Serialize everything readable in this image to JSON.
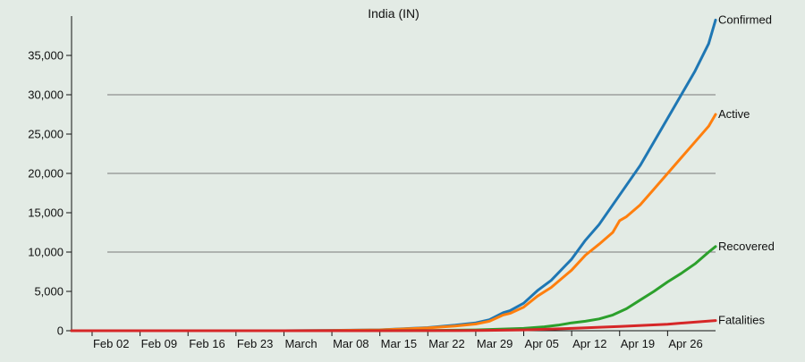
{
  "chart_data": {
    "type": "line",
    "title": "India (IN)",
    "xlabel": "",
    "ylabel": "",
    "x_start": "2020-01-30",
    "x_end": "2020-05-03",
    "x_ticks": [
      {
        "date": "2020-02-02",
        "label": "Feb 02"
      },
      {
        "date": "2020-02-09",
        "label": "Feb 09"
      },
      {
        "date": "2020-02-16",
        "label": "Feb 16"
      },
      {
        "date": "2020-02-23",
        "label": "Feb 23"
      },
      {
        "date": "2020-03-01",
        "label": "March"
      },
      {
        "date": "2020-03-08",
        "label": "Mar 08"
      },
      {
        "date": "2020-03-15",
        "label": "Mar 15"
      },
      {
        "date": "2020-03-22",
        "label": "Mar 22"
      },
      {
        "date": "2020-03-29",
        "label": "Mar 29"
      },
      {
        "date": "2020-04-05",
        "label": "Apr 05"
      },
      {
        "date": "2020-04-12",
        "label": "Apr 12"
      },
      {
        "date": "2020-04-19",
        "label": "Apr 19"
      },
      {
        "date": "2020-04-26",
        "label": "Apr 26"
      }
    ],
    "ylim": [
      0,
      40000
    ],
    "y_ticks": [
      0,
      5000,
      10000,
      15000,
      20000,
      25000,
      30000,
      35000
    ],
    "y_tick_labels": [
      "0",
      "5,000",
      "10,000",
      "15,000",
      "20,000",
      "25,000",
      "30,000",
      "35,000"
    ],
    "gridlines_y": [
      10000,
      20000,
      30000
    ],
    "grid": "horizontal",
    "legend": "end-of-line labels",
    "series": [
      {
        "name": "Confirmed",
        "color": "#1f77b4",
        "points": [
          [
            "2020-01-30",
            1
          ],
          [
            "2020-02-15",
            3
          ],
          [
            "2020-03-01",
            3
          ],
          [
            "2020-03-08",
            40
          ],
          [
            "2020-03-15",
            110
          ],
          [
            "2020-03-22",
            400
          ],
          [
            "2020-03-26",
            700
          ],
          [
            "2020-03-29",
            1000
          ],
          [
            "2020-03-31",
            1400
          ],
          [
            "2020-04-02",
            2300
          ],
          [
            "2020-04-03",
            2550
          ],
          [
            "2020-04-05",
            3500
          ],
          [
            "2020-04-07",
            5100
          ],
          [
            "2020-04-09",
            6400
          ],
          [
            "2020-04-12",
            9100
          ],
          [
            "2020-04-14",
            11500
          ],
          [
            "2020-04-16",
            13500
          ],
          [
            "2020-04-18",
            16000
          ],
          [
            "2020-04-20",
            18500
          ],
          [
            "2020-04-22",
            21000
          ],
          [
            "2020-04-24",
            24000
          ],
          [
            "2020-04-26",
            27000
          ],
          [
            "2020-04-28",
            30000
          ],
          [
            "2020-04-30",
            33000
          ],
          [
            "2020-05-02",
            36500
          ],
          [
            "2020-05-03",
            39500
          ]
        ]
      },
      {
        "name": "Active",
        "color": "#ff7f0e",
        "points": [
          [
            "2020-01-30",
            1
          ],
          [
            "2020-02-15",
            3
          ],
          [
            "2020-03-01",
            3
          ],
          [
            "2020-03-08",
            35
          ],
          [
            "2020-03-15",
            100
          ],
          [
            "2020-03-22",
            350
          ],
          [
            "2020-03-26",
            600
          ],
          [
            "2020-03-29",
            850
          ],
          [
            "2020-03-31",
            1200
          ],
          [
            "2020-04-02",
            2000
          ],
          [
            "2020-04-03",
            2200
          ],
          [
            "2020-04-05",
            3000
          ],
          [
            "2020-04-07",
            4400
          ],
          [
            "2020-04-09",
            5500
          ],
          [
            "2020-04-12",
            7700
          ],
          [
            "2020-04-14",
            9600
          ],
          [
            "2020-04-16",
            11000
          ],
          [
            "2020-04-18",
            12500
          ],
          [
            "2020-04-19",
            14000
          ],
          [
            "2020-04-20",
            14500
          ],
          [
            "2020-04-22",
            16000
          ],
          [
            "2020-04-24",
            18000
          ],
          [
            "2020-04-26",
            20000
          ],
          [
            "2020-04-28",
            22000
          ],
          [
            "2020-04-30",
            24000
          ],
          [
            "2020-05-02",
            26000
          ],
          [
            "2020-05-03",
            27500
          ]
        ]
      },
      {
        "name": "Recovered",
        "color": "#2ca02c",
        "points": [
          [
            "2020-01-30",
            0
          ],
          [
            "2020-02-15",
            3
          ],
          [
            "2020-03-08",
            4
          ],
          [
            "2020-03-22",
            30
          ],
          [
            "2020-03-29",
            100
          ],
          [
            "2020-04-05",
            300
          ],
          [
            "2020-04-08",
            500
          ],
          [
            "2020-04-10",
            700
          ],
          [
            "2020-04-12",
            1000
          ],
          [
            "2020-04-14",
            1200
          ],
          [
            "2020-04-16",
            1500
          ],
          [
            "2020-04-18",
            2000
          ],
          [
            "2020-04-20",
            2800
          ],
          [
            "2020-04-22",
            3900
          ],
          [
            "2020-04-24",
            5000
          ],
          [
            "2020-04-26",
            6200
          ],
          [
            "2020-04-28",
            7300
          ],
          [
            "2020-04-30",
            8500
          ],
          [
            "2020-05-02",
            10000
          ],
          [
            "2020-05-03",
            10700
          ]
        ]
      },
      {
        "name": "Fatalities",
        "color": "#d62728",
        "points": [
          [
            "2020-01-30",
            0
          ],
          [
            "2020-03-12",
            1
          ],
          [
            "2020-03-22",
            7
          ],
          [
            "2020-03-29",
            27
          ],
          [
            "2020-04-05",
            100
          ],
          [
            "2020-04-12",
            300
          ],
          [
            "2020-04-19",
            550
          ],
          [
            "2020-04-26",
            830
          ],
          [
            "2020-05-03",
            1300
          ]
        ]
      }
    ]
  }
}
